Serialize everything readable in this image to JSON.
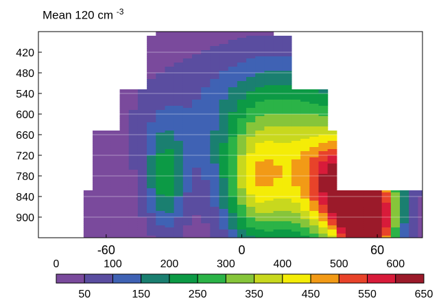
{
  "chart_data": {
    "type": "heatmap",
    "title": "Mean 120 cm",
    "title_superscript": "-3",
    "x_ticks": [
      -60,
      0,
      60
    ],
    "x_range": [
      -90,
      80
    ],
    "y_ticks": [
      420,
      480,
      540,
      600,
      660,
      720,
      780,
      840,
      900
    ],
    "y_range": [
      360,
      960
    ],
    "y_reversed": true,
    "grid": "horizontal lines at y ticks",
    "colorbar": {
      "boundaries_top": [
        0,
        100,
        200,
        300,
        400,
        500,
        600
      ],
      "mids_bottom": [
        50,
        150,
        250,
        350,
        450,
        550,
        650
      ],
      "levels": [
        0,
        50,
        100,
        150,
        200,
        250,
        300,
        350,
        400,
        450,
        500,
        550,
        600,
        650
      ],
      "colors": [
        "#7a4a9c",
        "#5a4da0",
        "#3f62b4",
        "#1a7f70",
        "#0c9a45",
        "#2bb347",
        "#86c53a",
        "#c8d81e",
        "#f4ec07",
        "#f29a16",
        "#e8432a",
        "#d81b3a",
        "#9b1a2a"
      ]
    },
    "contour_bands": [
      {
        "min": 0,
        "max": 50
      },
      {
        "min": 50,
        "max": 100
      },
      {
        "min": 100,
        "max": 150
      },
      {
        "min": 150,
        "max": 200
      },
      {
        "min": 200,
        "max": 250
      },
      {
        "min": 250,
        "max": 300
      },
      {
        "min": 300,
        "max": 350
      },
      {
        "min": 350,
        "max": 400
      },
      {
        "min": 400,
        "max": 450
      },
      {
        "min": 450,
        "max": 500
      },
      {
        "min": 500,
        "max": 550
      },
      {
        "min": 550,
        "max": 600
      },
      {
        "min": 600,
        "max": 650
      }
    ]
  }
}
